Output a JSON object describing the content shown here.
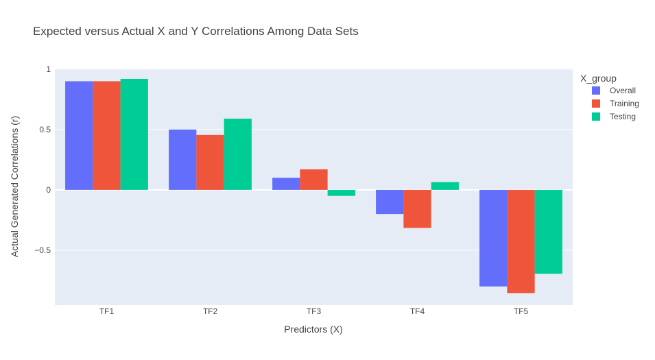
{
  "chart_data": {
    "type": "bar",
    "title": "Expected versus Actual X and Y Correlations Among Data Sets",
    "xlabel": "Predictors (X)",
    "ylabel": "Actual Generated Correlations (r)",
    "categories": [
      "TF1",
      "TF2",
      "TF3",
      "TF4",
      "TF5"
    ],
    "series": [
      {
        "name": "Overall",
        "color": "#636efa",
        "values": [
          0.9,
          0.5,
          0.1,
          -0.2,
          -0.8
        ]
      },
      {
        "name": "Training",
        "color": "#ef553b",
        "values": [
          0.9,
          0.455,
          0.17,
          -0.315,
          -0.855
        ]
      },
      {
        "name": "Testing",
        "color": "#00cc96",
        "values": [
          0.92,
          0.59,
          -0.05,
          0.065,
          -0.695
        ]
      }
    ],
    "ylim": [
      -0.955,
      1.005
    ],
    "yticks": [
      1,
      0.5,
      0,
      -0.5
    ],
    "ytick_labels": [
      "1",
      "0.5",
      "0",
      "−0.5"
    ],
    "legend": {
      "title": "X_group",
      "placement": "right"
    },
    "grid": true,
    "background": "#e5ecf6"
  }
}
